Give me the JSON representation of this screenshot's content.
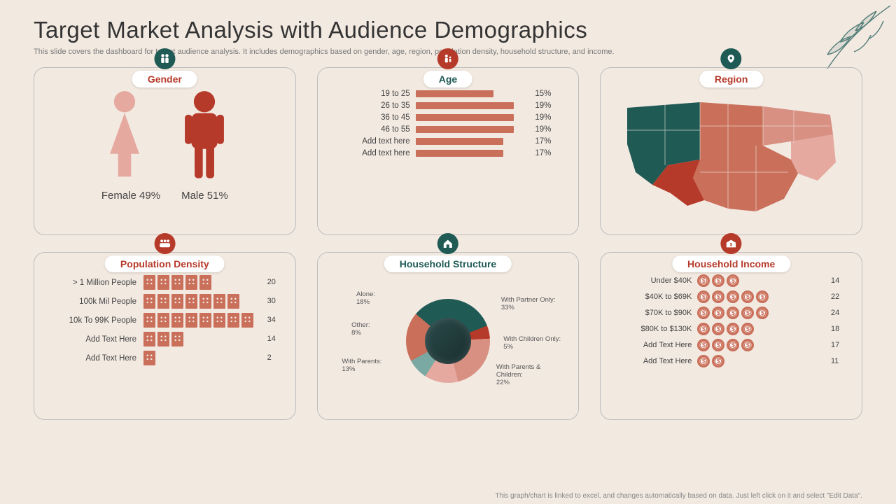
{
  "colors": {
    "background": "#f2e9e1",
    "accent_red": "#b63a2a",
    "accent_salmon": "#c96f5a",
    "accent_pink": "#e5a9a0",
    "accent_teal": "#1f5a55",
    "text_dark": "#3a3a3a",
    "text_muted": "#777777",
    "card_border": "#bdbdbd",
    "pill_bg": "#ffffff"
  },
  "title": "Target Market Analysis with Audience Demographics",
  "subtitle": "This slide covers the dashboard for target audience analysis. It includes demographics based on gender, age, region, population density, household structure, and income.",
  "footnote": "This graph/chart is linked to excel, and changes automatically based on data. Just left click on it and select \"Edit Data\".",
  "cards": {
    "gender": {
      "title": "Gender",
      "icon_bg": "#1f5a55",
      "title_color": "#b63a2a",
      "female": {
        "label": "Female 49%",
        "color": "#e5a9a0"
      },
      "male": {
        "label": "Male 51%",
        "color": "#b63a2a"
      }
    },
    "age": {
      "title": "Age",
      "icon_bg": "#b63a2a",
      "title_color": "#1f5a55",
      "bar_color": "#c96f5a",
      "max": 22,
      "rows": [
        {
          "label": "19 to 25",
          "value": 15,
          "value_label": "15%"
        },
        {
          "label": "26 to 35",
          "value": 19,
          "value_label": "19%"
        },
        {
          "label": "36 to 45",
          "value": 19,
          "value_label": "19%"
        },
        {
          "label": "46 to 55",
          "value": 19,
          "value_label": "19%"
        },
        {
          "label": "Add text here",
          "value": 17,
          "value_label": "17%"
        },
        {
          "label": "Add text here",
          "value": 17,
          "value_label": "17%"
        }
      ]
    },
    "region": {
      "title": "Region",
      "icon_bg": "#1f5a55",
      "title_color": "#b63a2a",
      "region_colors": [
        "#1f5a55",
        "#c96f5a",
        "#e5a9a0",
        "#b63a2a",
        "#d89082"
      ]
    },
    "population_density": {
      "title": "Population Density",
      "icon_bg": "#b63a2a",
      "title_color": "#b63a2a",
      "building_color": "#c96f5a",
      "rows": [
        {
          "label": "> 1 Million People",
          "count": 5,
          "value": "20"
        },
        {
          "label": "100k Mil People",
          "count": 7,
          "value": "30"
        },
        {
          "label": "10k To 99K People",
          "count": 8,
          "value": "34"
        },
        {
          "label": "Add Text Here",
          "count": 3,
          "value": "14"
        },
        {
          "label": "Add Text Here",
          "count": 1,
          "value": "2"
        }
      ]
    },
    "household_structure": {
      "title": "Household Structure",
      "icon_bg": "#1f5a55",
      "title_color": "#1f5a55",
      "slices": [
        {
          "label": "With Partner Only:",
          "pct": 33,
          "pct_label": "33%",
          "color": "#1f5a55"
        },
        {
          "label": "With Children Only:",
          "pct": 5,
          "pct_label": "5%",
          "color": "#b63a2a"
        },
        {
          "label": "With Parents & Children:",
          "pct": 22,
          "pct_label": "22%",
          "color": "#d89082"
        },
        {
          "label": "With Parents:",
          "pct": 13,
          "pct_label": "13%",
          "color": "#e5a9a0"
        },
        {
          "label": "Other:",
          "pct": 8,
          "pct_label": "8%",
          "color": "#7aa8a3"
        },
        {
          "label": "Alone:",
          "pct": 18,
          "pct_label": "18%",
          "color": "#c96f5a"
        }
      ]
    },
    "household_income": {
      "title": "Household Income",
      "icon_bg": "#b63a2a",
      "title_color": "#b63a2a",
      "coin_color": "#c96f5a",
      "rows": [
        {
          "label": "Under $40K",
          "count": 3,
          "value": "14"
        },
        {
          "label": "$40K to $69K",
          "count": 5,
          "value": "22"
        },
        {
          "label": "$70K to $90K",
          "count": 5,
          "value": "24"
        },
        {
          "label": "$80K to $130K",
          "count": 4,
          "value": "18"
        },
        {
          "label": "Add Text Here",
          "count": 4,
          "value": "17"
        },
        {
          "label": "Add Text Here",
          "count": 2,
          "value": "11"
        }
      ]
    }
  }
}
